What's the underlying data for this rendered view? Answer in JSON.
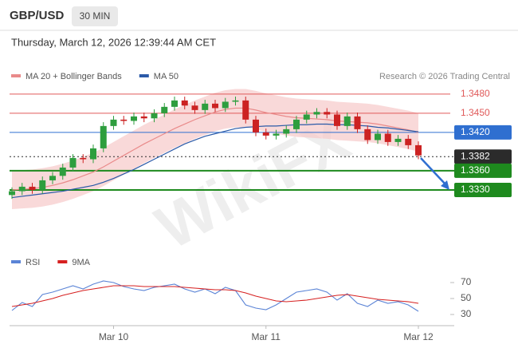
{
  "header": {
    "symbol": "GBP/USD",
    "interval": "30 MIN",
    "timestamp": "Thursday, March 12, 2026 12:39:44 AM CET",
    "source": "Research © 2026 Trading Central",
    "watermark": "WikiFX"
  },
  "chart_data": [
    {
      "type": "candlestick",
      "ylim": [
        1.324,
        1.3546
      ],
      "up_color": "#2e9e3e",
      "down_color": "#cc2222",
      "bollinger_width": 0.003,
      "bollinger_color": "#f7c9c9",
      "open": [
        1.3322,
        1.3328,
        1.3335,
        1.333,
        1.3345,
        1.3352,
        1.3365,
        1.338,
        1.3378,
        1.3395,
        1.343,
        1.344,
        1.3438,
        1.3445,
        1.3442,
        1.345,
        1.346,
        1.347,
        1.3462,
        1.3455,
        1.3465,
        1.3458,
        1.3468,
        1.347,
        1.344,
        1.342,
        1.3415,
        1.3418,
        1.3425,
        1.344,
        1.3448,
        1.3452,
        1.3448,
        1.343,
        1.3445,
        1.3425,
        1.3408,
        1.3418,
        1.3405,
        1.341,
        1.34
      ],
      "high": [
        1.3334,
        1.3341,
        1.3341,
        1.3351,
        1.3358,
        1.3371,
        1.3386,
        1.3386,
        1.3401,
        1.3436,
        1.3446,
        1.3446,
        1.3451,
        1.3451,
        1.3456,
        1.3466,
        1.3476,
        1.3476,
        1.3468,
        1.3471,
        1.3471,
        1.3474,
        1.3476,
        1.3476,
        1.3446,
        1.3426,
        1.3424,
        1.3431,
        1.3446,
        1.3454,
        1.3458,
        1.3458,
        1.3454,
        1.3451,
        1.3451,
        1.3431,
        1.3424,
        1.3424,
        1.3416,
        1.3416,
        1.3406
      ],
      "low": [
        1.3316,
        1.3322,
        1.3324,
        1.3324,
        1.3339,
        1.3346,
        1.3359,
        1.3372,
        1.3372,
        1.3389,
        1.3424,
        1.3432,
        1.3432,
        1.3436,
        1.3436,
        1.3444,
        1.3454,
        1.3456,
        1.3449,
        1.3449,
        1.3452,
        1.3452,
        1.3462,
        1.3434,
        1.3414,
        1.3409,
        1.3409,
        1.3412,
        1.3419,
        1.3434,
        1.3442,
        1.3442,
        1.3424,
        1.3424,
        1.3419,
        1.3402,
        1.3402,
        1.3399,
        1.3399,
        1.3394,
        1.3378
      ],
      "close": [
        1.3328,
        1.3335,
        1.333,
        1.3345,
        1.3352,
        1.3365,
        1.338,
        1.3378,
        1.3395,
        1.343,
        1.344,
        1.3438,
        1.3445,
        1.3442,
        1.345,
        1.346,
        1.347,
        1.3462,
        1.3455,
        1.3465,
        1.3458,
        1.3468,
        1.347,
        1.344,
        1.342,
        1.3415,
        1.3418,
        1.3425,
        1.344,
        1.3448,
        1.3452,
        1.3448,
        1.343,
        1.3445,
        1.3425,
        1.3408,
        1.3418,
        1.3405,
        1.341,
        1.34,
        1.3384
      ],
      "series": [
        {
          "name": "MA 20 + Bollinger Bands",
          "color": "#e98a8a",
          "values": [
            1.333,
            1.3331,
            1.3332,
            1.3334,
            1.3337,
            1.3341,
            1.3346,
            1.3352,
            1.3358,
            1.3366,
            1.3375,
            1.3384,
            1.3393,
            1.3402,
            1.341,
            1.3418,
            1.3426,
            1.3433,
            1.344,
            1.3446,
            1.3452,
            1.3456,
            1.3458,
            1.3458,
            1.3455,
            1.3451,
            1.3448,
            1.3445,
            1.3443,
            1.3442,
            1.3441,
            1.344,
            1.3438,
            1.3437,
            1.3436,
            1.3435,
            1.3433,
            1.343,
            1.3427,
            1.3424,
            1.342
          ]
        },
        {
          "name": "MA 50",
          "color": "#2b5aa8",
          "values": [
            1.3318,
            1.332,
            1.3322,
            1.3324,
            1.3326,
            1.3328,
            1.3331,
            1.3334,
            1.3337,
            1.3342,
            1.3348,
            1.3355,
            1.3362,
            1.337,
            1.3378,
            1.3386,
            1.3394,
            1.3402,
            1.3408,
            1.3414,
            1.3418,
            1.3422,
            1.3426,
            1.3428,
            1.3429,
            1.343,
            1.343,
            1.3431,
            1.3432,
            1.3432,
            1.3433,
            1.3433,
            1.3432,
            1.3432,
            1.3431,
            1.343,
            1.3428,
            1.3427,
            1.3425,
            1.3423,
            1.3421
          ]
        }
      ],
      "levels": [
        {
          "value": 1.348,
          "label": "1.3480",
          "color": "#e05a5a",
          "boxed": false,
          "dashed": false
        },
        {
          "value": 1.345,
          "label": "1.3450",
          "color": "#e05a5a",
          "boxed": false,
          "dashed": false
        },
        {
          "value": 1.342,
          "label": "1.3420",
          "color": "#2f6fd0",
          "boxed": true,
          "dashed": false
        },
        {
          "value": 1.3382,
          "label": "1.3382",
          "color": "#2b2b2b",
          "boxed": true,
          "dashed": true
        },
        {
          "value": 1.336,
          "label": "1.3360",
          "color": "#1e8a1e",
          "boxed": true,
          "dashed": false
        },
        {
          "value": 1.333,
          "label": "1.3330",
          "color": "#1e8a1e",
          "boxed": true,
          "dashed": false
        }
      ]
    },
    {
      "type": "line",
      "ylim": [
        19,
        84
      ],
      "yticks": [
        30,
        50,
        70
      ],
      "categories": [
        null,
        null,
        null,
        null,
        null,
        null,
        null,
        null,
        null,
        null,
        "Mar 10",
        null,
        null,
        null,
        null,
        null,
        null,
        null,
        null,
        null,
        null,
        null,
        null,
        null,
        null,
        "Mar 11",
        null,
        null,
        null,
        null,
        null,
        null,
        null,
        null,
        null,
        null,
        null,
        null,
        null,
        null,
        "Mar 12"
      ],
      "series": [
        {
          "name": "RSI",
          "color": "#5b84d6",
          "values": [
            35,
            45,
            40,
            55,
            58,
            62,
            66,
            62,
            68,
            72,
            70,
            65,
            62,
            60,
            64,
            66,
            68,
            62,
            58,
            62,
            56,
            64,
            60,
            42,
            38,
            36,
            42,
            50,
            58,
            60,
            62,
            58,
            48,
            56,
            44,
            40,
            48,
            44,
            46,
            42,
            34
          ]
        },
        {
          "name": "9MA",
          "color": "#d62020",
          "values": [
            40,
            42,
            44,
            47,
            50,
            54,
            57,
            60,
            62,
            64,
            66,
            66,
            66,
            65,
            65,
            65,
            65,
            64,
            63,
            62,
            61,
            61,
            60,
            57,
            53,
            50,
            47,
            46,
            47,
            48,
            50,
            52,
            54,
            55,
            53,
            51,
            49,
            48,
            47,
            46,
            44
          ]
        }
      ]
    }
  ]
}
